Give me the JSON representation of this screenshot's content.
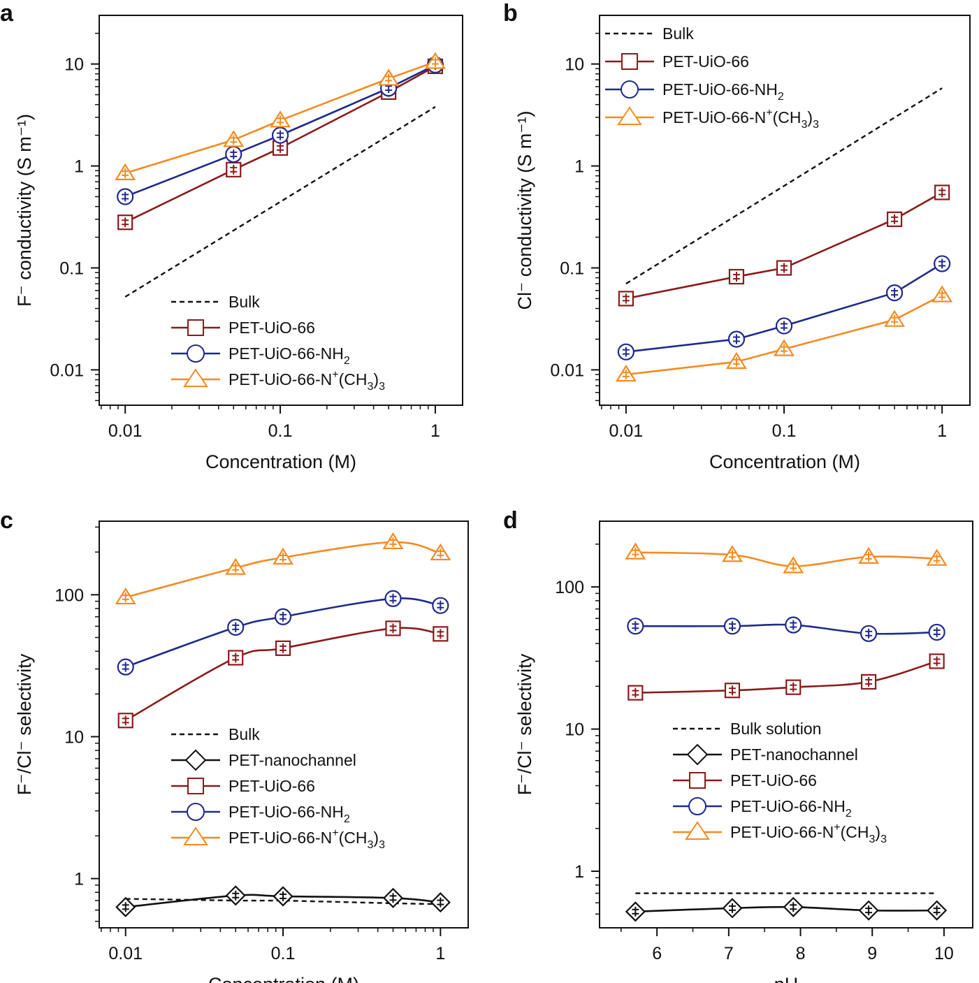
{
  "colors": {
    "bulk": "#111111",
    "pet_uio66": "#8b1a1a",
    "pet_uio66_nh2": "#1f2a8c",
    "pet_uio66_nme3": "#f58a1f",
    "pet_nanochannel": "#111111"
  },
  "chart_data": [
    {
      "panel": "a",
      "type": "line",
      "xlabel": "Concentration (M)",
      "ylabel": "F⁻ conductivity (S m⁻¹)",
      "xscale": "log",
      "yscale": "log",
      "xlim": [
        0.0068,
        1.5
      ],
      "ylim": [
        0.0045,
        30
      ],
      "xticks": [
        0.01,
        0.1,
        1
      ],
      "xtick_labels": [
        "0.01",
        "0.1",
        "1"
      ],
      "yticks": [
        0.01,
        0.1,
        1,
        10
      ],
      "ytick_labels": [
        "0.01",
        "0.1",
        "1",
        "10"
      ],
      "legend_position": "bottom-right",
      "series": [
        {
          "name": "Bulk",
          "style": "dashed",
          "marker": "none",
          "color": "#111111",
          "x": [
            0.01,
            1
          ],
          "y": [
            0.052,
            3.8
          ]
        },
        {
          "name": "PET-UiO-66",
          "marker": "square",
          "color": "#8b1a1a",
          "x": [
            0.01,
            0.05,
            0.1,
            0.5,
            1
          ],
          "y": [
            0.28,
            0.92,
            1.5,
            5.3,
            9.5
          ]
        },
        {
          "name": "PET-UiO-66-NH",
          "name_sub": "2",
          "marker": "circle",
          "color": "#1f2a8c",
          "x": [
            0.01,
            0.05,
            0.1,
            0.5,
            1
          ],
          "y": [
            0.5,
            1.3,
            2.0,
            5.8,
            9.8
          ]
        },
        {
          "name": "PET-UiO-66-N",
          "name_sup": "+",
          "name_tail": "(CH",
          "name_sub": "3",
          "name_end": ")",
          "name_sub2": "3",
          "marker": "triangle",
          "color": "#f58a1f",
          "x": [
            0.01,
            0.05,
            0.1,
            0.5,
            1
          ],
          "y": [
            0.85,
            1.8,
            2.8,
            7.2,
            10.5
          ]
        }
      ]
    },
    {
      "panel": "b",
      "type": "line",
      "xlabel": "Concentration (M)",
      "ylabel": "Cl⁻ conductivity (S m⁻¹)",
      "xscale": "log",
      "yscale": "log",
      "xlim": [
        0.0068,
        1.5
      ],
      "ylim": [
        0.0045,
        30
      ],
      "xticks": [
        0.01,
        0.1,
        1
      ],
      "xtick_labels": [
        "0.01",
        "0.1",
        "1"
      ],
      "yticks": [
        0.01,
        0.1,
        1,
        10
      ],
      "ytick_labels": [
        "0.01",
        "0.1",
        "1",
        "10"
      ],
      "legend_position": "top-left",
      "series": [
        {
          "name": "Bulk",
          "style": "dashed",
          "marker": "none",
          "color": "#111111",
          "x": [
            0.01,
            1
          ],
          "y": [
            0.07,
            5.8
          ]
        },
        {
          "name": "PET-UiO-66",
          "marker": "square",
          "color": "#8b1a1a",
          "x": [
            0.01,
            0.05,
            0.1,
            0.5,
            1
          ],
          "y": [
            0.05,
            0.082,
            0.1,
            0.3,
            0.55
          ]
        },
        {
          "name": "PET-UiO-66-NH",
          "name_sub": "2",
          "marker": "circle",
          "color": "#1f2a8c",
          "x": [
            0.01,
            0.05,
            0.1,
            0.5,
            1
          ],
          "y": [
            0.015,
            0.02,
            0.027,
            0.057,
            0.11
          ]
        },
        {
          "name": "PET-UiO-66-N",
          "name_sup": "+",
          "name_tail": "(CH",
          "name_sub": "3",
          "name_end": ")",
          "name_sub2": "3",
          "marker": "triangle",
          "color": "#f58a1f",
          "x": [
            0.01,
            0.05,
            0.1,
            0.5,
            1
          ],
          "y": [
            0.009,
            0.012,
            0.016,
            0.031,
            0.054
          ]
        }
      ]
    },
    {
      "panel": "c",
      "type": "line",
      "xlabel": "Concentration (M)",
      "ylabel": "F⁻/Cl⁻ selectivity",
      "xscale": "log",
      "yscale": "log",
      "xlim": [
        0.0068,
        1.5
      ],
      "ylim": [
        0.45,
        330
      ],
      "xticks": [
        0.01,
        0.1,
        1
      ],
      "xtick_labels": [
        "0.01",
        "0.1",
        "1"
      ],
      "yticks": [
        1,
        10,
        100
      ],
      "ytick_labels": [
        "1",
        "10",
        "100"
      ],
      "legend_position": "bottom-right",
      "series": [
        {
          "name": "Bulk",
          "style": "dashed",
          "marker": "none",
          "color": "#111111",
          "x": [
            0.01,
            0.05,
            0.1,
            0.5,
            1
          ],
          "y": [
            0.72,
            0.7,
            0.7,
            0.67,
            0.66
          ]
        },
        {
          "name": "PET-nanochannel",
          "marker": "diamond",
          "color": "#111111",
          "x": [
            0.01,
            0.05,
            0.1,
            0.5,
            1
          ],
          "y": [
            0.63,
            0.76,
            0.75,
            0.73,
            0.68
          ]
        },
        {
          "name": "PET-UiO-66",
          "marker": "square",
          "color": "#8b1a1a",
          "x": [
            0.01,
            0.05,
            0.1,
            0.5,
            1
          ],
          "y": [
            13,
            36,
            42,
            58,
            53
          ]
        },
        {
          "name": "PET-UiO-66-NH",
          "name_sub": "2",
          "marker": "circle",
          "color": "#1f2a8c",
          "x": [
            0.01,
            0.05,
            0.1,
            0.5,
            1
          ],
          "y": [
            31,
            59,
            70,
            94,
            84
          ]
        },
        {
          "name": "PET-UiO-66-N",
          "name_sup": "+",
          "name_tail": "(CH",
          "name_sub": "3",
          "name_end": ")",
          "name_sub2": "3",
          "marker": "triangle",
          "color": "#f58a1f",
          "x": [
            0.01,
            0.05,
            0.1,
            0.5,
            1
          ],
          "y": [
            96,
            155,
            183,
            235,
            196
          ]
        }
      ]
    },
    {
      "panel": "d",
      "type": "line",
      "xlabel": "pH",
      "ylabel": "F⁻/Cl⁻ selectivity",
      "xscale": "linear",
      "yscale": "log",
      "xlim": [
        5.2,
        10.4
      ],
      "ylim": [
        0.4,
        290
      ],
      "xticks": [
        6,
        7,
        8,
        9,
        10
      ],
      "xtick_labels": [
        "6",
        "7",
        "8",
        "9",
        "10"
      ],
      "yticks": [
        1,
        10,
        100
      ],
      "ytick_labels": [
        "1",
        "10",
        "100"
      ],
      "legend_position": "bottom-right",
      "series": [
        {
          "name": "Bulk solution",
          "style": "dashed",
          "marker": "none",
          "color": "#111111",
          "x": [
            5.7,
            9.9
          ],
          "y": [
            0.7,
            0.7
          ]
        },
        {
          "name": "PET-nanochannel",
          "marker": "diamond",
          "color": "#111111",
          "x": [
            5.7,
            7.05,
            7.9,
            8.95,
            9.9
          ],
          "y": [
            0.52,
            0.55,
            0.56,
            0.53,
            0.53
          ]
        },
        {
          "name": "PET-UiO-66",
          "marker": "square",
          "color": "#8b1a1a",
          "x": [
            5.7,
            7.05,
            7.9,
            8.95,
            9.9
          ],
          "y": [
            18,
            18.7,
            19.7,
            21.5,
            30
          ]
        },
        {
          "name": "PET-UiO-66-NH",
          "name_sub": "2",
          "marker": "circle",
          "color": "#1f2a8c",
          "x": [
            5.7,
            7.05,
            7.9,
            8.95,
            9.9
          ],
          "y": [
            53,
            53,
            54,
            47,
            48
          ]
        },
        {
          "name": "PET-UiO-66-N",
          "name_sup": "+",
          "name_tail": "(CH",
          "name_sub": "3",
          "name_end": ")",
          "name_sub2": "3",
          "marker": "triangle",
          "color": "#f58a1f",
          "x": [
            5.7,
            7.05,
            7.9,
            8.95,
            9.9
          ],
          "y": [
            175,
            168,
            140,
            163,
            158
          ]
        }
      ]
    }
  ]
}
